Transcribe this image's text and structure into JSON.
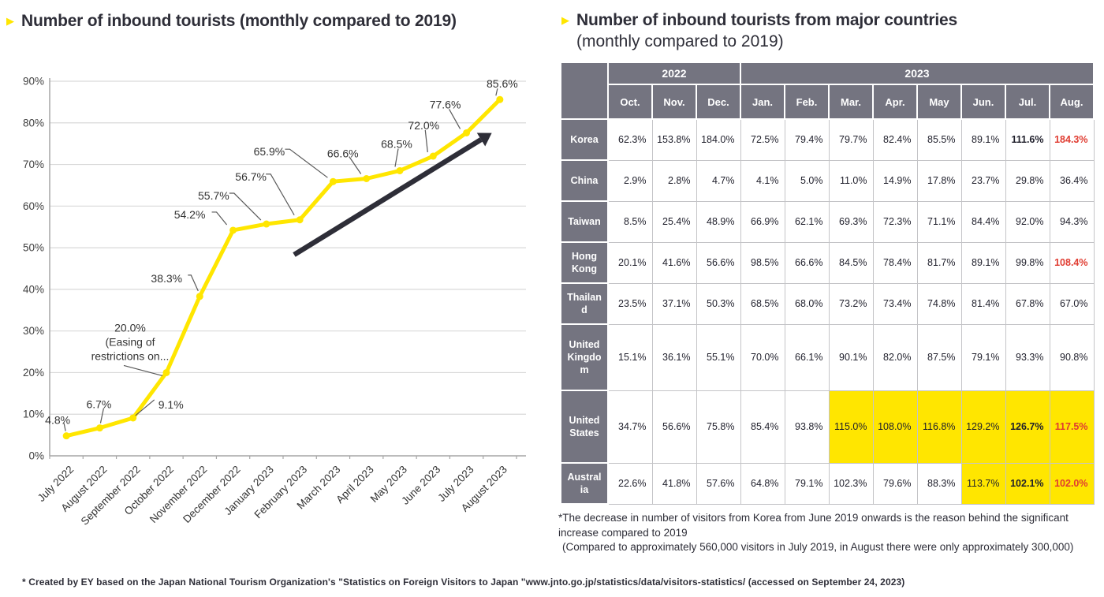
{
  "colors": {
    "accent_yellow": "#FFE600",
    "header_gray": "#747480",
    "highlight_red": "#E03C31",
    "dark_text": "#2e2e38",
    "gridline": "#d9d9d9",
    "axis": "#a6a6a6",
    "leader": "#595959",
    "arrow": "#2e2e38"
  },
  "icons": {
    "title_bullet": "▶"
  },
  "left": {
    "title": "Number of inbound tourists (monthly compared to 2019)"
  },
  "right": {
    "title_line1": "Number of inbound tourists from major countries",
    "title_line2": "(monthly compared to 2019)",
    "footnote_para1": "*The decrease in number of visitors from Korea from June 2019 onwards is the reason behind the significant increase compared to 2019",
    "footnote_para2": "(Compared to approximately 560,000 visitors in July 2019, in August there were only approximately 300,000)"
  },
  "source_note": "* Created by EY based on the Japan National Tourism Organization's \"Statistics on Foreign Visitors to Japan \"www.jnto.go.jp/statistics/data/visitors-statistics/ (accessed on September 24, 2023)",
  "chart_data": [
    {
      "type": "line",
      "title": "Number of inbound tourists (monthly compared to 2019)",
      "x": [
        "July 2022",
        "August 2022",
        "September 2022",
        "October 2022",
        "November 2022",
        "December 2022",
        "January 2023",
        "February 2023",
        "March 2023",
        "April 2023",
        "May 2023",
        "June 2023",
        "July 2023",
        "August 2023"
      ],
      "values": [
        4.8,
        6.7,
        9.1,
        20.0,
        38.3,
        54.2,
        55.7,
        56.7,
        65.9,
        66.6,
        68.5,
        72.0,
        77.6,
        85.6
      ],
      "annotation_index": 3,
      "annotation_lines": [
        "(Easing of",
        "restrictions on..."
      ],
      "ylim": [
        0,
        90
      ],
      "ytick_step": 10,
      "grid": true,
      "legend": "none",
      "line_color": "#FFE600",
      "trend_arrow": true
    },
    {
      "type": "table",
      "title": "Number of inbound tourists from major countries (monthly compared to 2019)",
      "col_groups": [
        {
          "label": "2022",
          "span": 3
        },
        {
          "label": "2023",
          "span": 8
        }
      ],
      "columns": [
        "Oct.",
        "Nov.",
        "Dec.",
        "Jan.",
        "Feb.",
        "Mar.",
        "Apr.",
        "May",
        "Jun.",
        "Jul.",
        "Aug."
      ],
      "rows": [
        {
          "label": "Korea",
          "label_lines": [
            "Korea"
          ],
          "values": [
            62.3,
            153.8,
            184.0,
            72.5,
            79.4,
            79.7,
            82.4,
            85.5,
            89.1,
            111.6,
            184.3
          ],
          "yellow": [],
          "bold": [
            9,
            10
          ],
          "red": [
            10
          ]
        },
        {
          "label": "China",
          "label_lines": [
            "China"
          ],
          "values": [
            2.9,
            2.8,
            4.7,
            4.1,
            5.0,
            11.0,
            14.9,
            17.8,
            23.7,
            29.8,
            36.4
          ],
          "yellow": [],
          "bold": [],
          "red": []
        },
        {
          "label": "Taiwan",
          "label_lines": [
            "Taiwan"
          ],
          "values": [
            8.5,
            25.4,
            48.9,
            66.9,
            62.1,
            69.3,
            72.3,
            71.1,
            84.4,
            92.0,
            94.3
          ],
          "yellow": [],
          "bold": [],
          "red": []
        },
        {
          "label": "Hong Kong",
          "label_lines": [
            "Hong",
            "Kong"
          ],
          "values": [
            20.1,
            41.6,
            56.6,
            98.5,
            66.6,
            84.5,
            78.4,
            81.7,
            89.1,
            99.8,
            108.4
          ],
          "yellow": [],
          "bold": [
            10
          ],
          "red": [
            10
          ]
        },
        {
          "label": "Thailand",
          "label_lines": [
            "Thailan",
            "d"
          ],
          "values": [
            23.5,
            37.1,
            50.3,
            68.5,
            68.0,
            73.2,
            73.4,
            74.8,
            81.4,
            67.8,
            67.0
          ],
          "yellow": [],
          "bold": [],
          "red": []
        },
        {
          "label": "United Kingdom",
          "label_lines": [
            "United",
            "Kingdo",
            "m"
          ],
          "values": [
            15.1,
            36.1,
            55.1,
            70.0,
            66.1,
            90.1,
            82.0,
            87.5,
            79.1,
            93.3,
            90.8
          ],
          "yellow": [],
          "bold": [],
          "red": []
        },
        {
          "label": "United States",
          "label_lines": [
            "United",
            "States"
          ],
          "values": [
            34.7,
            56.6,
            75.8,
            85.4,
            93.8,
            115.0,
            108.0,
            116.8,
            129.2,
            126.7,
            117.5
          ],
          "yellow": [
            5,
            6,
            7,
            8,
            9,
            10
          ],
          "bold": [
            9,
            10
          ],
          "red": [
            10
          ]
        },
        {
          "label": "Australia",
          "label_lines": [
            "Austral",
            "ia"
          ],
          "values": [
            22.6,
            41.8,
            57.6,
            64.8,
            79.1,
            102.3,
            79.6,
            88.3,
            113.7,
            102.1,
            102.0
          ],
          "yellow": [
            8,
            9,
            10
          ],
          "bold": [
            9,
            10
          ],
          "red": [
            10
          ]
        }
      ]
    }
  ]
}
